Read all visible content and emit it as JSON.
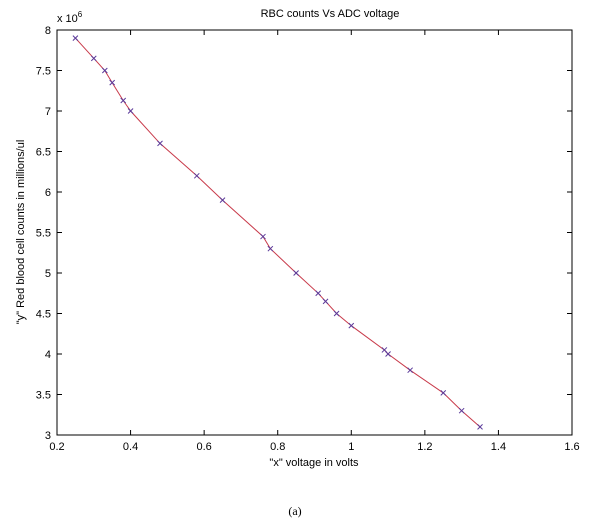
{
  "chart_data": {
    "type": "line",
    "title": "RBC counts Vs ADC voltage",
    "xlabel": "\"x\" voltage in volts",
    "ylabel": "\"y\" Red blood cell counts in millions/ul",
    "y_multiplier_base": "x 10",
    "y_multiplier_exp": "6",
    "xlim": [
      0.2,
      1.6
    ],
    "ylim": [
      3,
      8
    ],
    "xticks": [
      0.2,
      0.4,
      0.6,
      0.8,
      1,
      1.2,
      1.4,
      1.6
    ],
    "xtick_labels": [
      "0.2",
      "0.4",
      "0.6",
      "0.8",
      "1",
      "1.2",
      "1.4",
      "1.6"
    ],
    "yticks": [
      3,
      3.5,
      4,
      4.5,
      5,
      5.5,
      6,
      6.5,
      7,
      7.5,
      8
    ],
    "ytick_labels": [
      "3",
      "3.5",
      "4",
      "4.5",
      "5",
      "5.5",
      "6",
      "6.5",
      "7",
      "7.5",
      "8"
    ],
    "grid": false,
    "series": [
      {
        "color": "#c83a4a",
        "marker": "x",
        "marker_color": "#5a3a9a",
        "x": [
          0.25,
          0.3,
          0.33,
          0.35,
          0.38,
          0.4,
          0.48,
          0.58,
          0.65,
          0.76,
          0.78,
          0.85,
          0.91,
          0.93,
          0.96,
          1.0,
          1.09,
          1.1,
          1.16,
          1.25,
          1.3,
          1.35
        ],
        "y": [
          7.9,
          7.65,
          7.5,
          7.35,
          7.13,
          7.0,
          6.6,
          6.2,
          5.9,
          5.45,
          5.3,
          5.0,
          4.75,
          4.65,
          4.5,
          4.35,
          4.05,
          4.0,
          3.8,
          3.52,
          3.3,
          3.1
        ]
      }
    ]
  },
  "caption": "(a)"
}
